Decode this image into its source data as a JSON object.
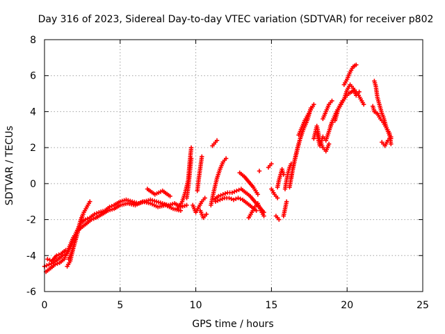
{
  "chart_data": {
    "type": "scatter",
    "title": "Day 316 of 2023, Sidereal Day-to-day VTEC variation (SDTVAR) for receiver p802",
    "xlabel": "GPS time / hours",
    "ylabel": "SDTVAR / TECUs",
    "xlim": [
      0,
      25
    ],
    "ylim": [
      -6,
      8
    ],
    "xticks": [
      0,
      5,
      10,
      15,
      20,
      25
    ],
    "xtick_labels": [
      "0",
      "5",
      "10",
      "15",
      "20",
      "25"
    ],
    "yticks": [
      -6,
      -4,
      -2,
      0,
      2,
      4,
      6,
      8
    ],
    "ytick_labels": [
      "-6",
      "-4",
      "-2",
      "0",
      "2",
      "4",
      "6",
      "8"
    ],
    "grid": true,
    "marker": "+",
    "color": "#ff0000",
    "series": [
      {
        "name": "SDTVAR",
        "segments": [
          {
            "x": [
              0.0,
              0.3,
              0.6,
              0.9,
              1.2,
              1.5,
              1.8,
              2.1,
              2.4,
              2.7,
              3.0,
              3.3,
              3.6,
              4.0,
              4.3,
              4.6,
              5.0,
              5.4,
              5.8,
              6.2,
              6.6,
              7.0,
              7.4,
              7.8,
              8.2,
              8.6,
              9.0,
              9.4
            ],
            "y": [
              -4.6,
              -4.5,
              -4.4,
              -4.2,
              -4.0,
              -3.9,
              -3.4,
              -2.7,
              -2.2,
              -2.0,
              -1.9,
              -1.7,
              -1.6,
              -1.5,
              -1.3,
              -1.2,
              -1.0,
              -0.9,
              -1.0,
              -1.1,
              -1.0,
              -0.9,
              -1.0,
              -1.1,
              -1.2,
              -1.1,
              -1.3,
              -1.2
            ]
          },
          {
            "x": [
              0.1,
              0.4,
              0.7,
              1.0,
              1.3,
              1.6,
              1.9,
              2.2,
              2.5,
              2.8,
              3.1,
              3.4,
              3.8,
              4.2,
              4.6,
              5.0,
              5.5,
              6.0,
              6.5,
              7.0,
              7.5,
              8.0,
              8.5,
              9.0
            ],
            "y": [
              -4.9,
              -4.7,
              -4.5,
              -4.4,
              -4.2,
              -3.6,
              -3.0,
              -2.6,
              -2.4,
              -2.2,
              -2.0,
              -1.9,
              -1.7,
              -1.5,
              -1.4,
              -1.2,
              -1.1,
              -1.2,
              -1.0,
              -1.1,
              -1.3,
              -1.2,
              -1.4,
              -1.5
            ]
          },
          {
            "x": [
              1.6,
              1.8,
              2.0,
              2.2,
              2.4,
              2.6,
              2.8,
              3.0
            ],
            "y": [
              -4.2,
              -3.8,
              -3.2,
              -2.6,
              -2.0,
              -1.6,
              -1.3,
              -1.0
            ]
          },
          {
            "x": [
              1.5,
              1.7,
              1.9,
              2.1,
              2.3,
              2.5
            ],
            "y": [
              -4.6,
              -4.3,
              -3.6,
              -3.0,
              -2.4,
              -1.8
            ]
          },
          {
            "x": [
              0.2,
              0.5,
              0.8,
              1.1,
              1.4
            ],
            "y": [
              -4.2,
              -4.3,
              -4.0,
              -3.9,
              -3.7
            ]
          },
          {
            "x": [
              6.8,
              7.3,
              7.8,
              8.3
            ],
            "y": [
              -0.3,
              -0.6,
              -0.4,
              -0.7
            ]
          },
          {
            "x": [
              8.8,
              9.1,
              9.3,
              9.5,
              9.6,
              9.7
            ],
            "y": [
              -1.4,
              -1.0,
              -0.5,
              0.2,
              1.2,
              2.0
            ]
          },
          {
            "x": [
              9.4,
              9.5,
              9.6,
              9.7
            ],
            "y": [
              -0.8,
              -0.2,
              0.6,
              1.4
            ]
          },
          {
            "x": [
              9.8,
              10.0,
              10.2,
              10.4,
              10.6
            ],
            "y": [
              -1.2,
              -1.6,
              -1.3,
              -1.0,
              -0.8
            ]
          },
          {
            "x": [
              10.1,
              10.2,
              10.3,
              10.4
            ],
            "y": [
              -0.4,
              0.3,
              0.9,
              1.5
            ]
          },
          {
            "x": [
              10.3,
              10.5,
              10.7
            ],
            "y": [
              -1.5,
              -1.9,
              -1.7
            ]
          },
          {
            "x": [
              11.1,
              11.2,
              11.3,
              11.4
            ],
            "y": [
              2.1,
              2.2,
              2.3,
              2.4
            ]
          },
          {
            "x": [
              11.0,
              11.2,
              11.4,
              11.6,
              11.8,
              12.0
            ],
            "y": [
              -1.2,
              -0.4,
              0.3,
              0.8,
              1.2,
              1.4
            ]
          },
          {
            "x": [
              11.2,
              11.5,
              11.8,
              12.1,
              12.4,
              12.7,
              13.0,
              13.3,
              13.6,
              13.9,
              14.2,
              14.5
            ],
            "y": [
              -0.9,
              -0.7,
              -0.6,
              -0.5,
              -0.5,
              -0.4,
              -0.3,
              -0.5,
              -0.7,
              -1.0,
              -1.3,
              -1.6
            ]
          },
          {
            "x": [
              11.3,
              11.6,
              11.9,
              12.2,
              12.5,
              12.8,
              13.1,
              13.4,
              13.7,
              14.0
            ],
            "y": [
              -1.0,
              -0.9,
              -0.8,
              -0.8,
              -0.9,
              -0.8,
              -0.9,
              -1.1,
              -1.3,
              -1.5
            ]
          },
          {
            "x": [
              12.9,
              13.2,
              13.5,
              13.8,
              14.1
            ],
            "y": [
              0.6,
              0.4,
              0.1,
              -0.2,
              -0.6
            ]
          },
          {
            "x": [
              13.5,
              13.7,
              13.9,
              14.1,
              14.3,
              14.5
            ],
            "y": [
              -1.9,
              -1.6,
              -1.3,
              -1.1,
              -1.5,
              -1.8
            ]
          },
          {
            "x": [
              14.2
            ],
            "y": [
              0.7
            ]
          },
          {
            "x": [
              14.8,
              14.9,
              15.0
            ],
            "y": [
              0.9,
              1.0,
              1.1
            ]
          },
          {
            "x": [
              15.0,
              15.2,
              15.4
            ],
            "y": [
              -0.3,
              -0.6,
              -0.8
            ]
          },
          {
            "x": [
              15.3,
              15.4,
              15.5
            ],
            "y": [
              -1.8,
              -1.9,
              -2.0
            ]
          },
          {
            "x": [
              15.4,
              15.5,
              15.6,
              15.7,
              15.8
            ],
            "y": [
              -0.2,
              0.2,
              0.5,
              0.8,
              0.5
            ]
          },
          {
            "x": [
              15.8,
              15.9,
              16.0
            ],
            "y": [
              -1.8,
              -1.4,
              -1.0
            ]
          },
          {
            "x": [
              15.9,
              16.0,
              16.1,
              16.2,
              16.3
            ],
            "y": [
              -0.3,
              0.2,
              0.6,
              0.9,
              1.1
            ]
          },
          {
            "x": [
              16.2,
              16.4,
              16.6,
              16.8,
              17.0,
              17.2,
              17.4,
              17.6
            ],
            "y": [
              -0.2,
              0.8,
              1.5,
              2.2,
              2.8,
              3.2,
              3.6,
              4.2
            ]
          },
          {
            "x": [
              16.3,
              16.5,
              16.7,
              16.9,
              17.1,
              17.3,
              17.5
            ],
            "y": [
              0.3,
              1.2,
              1.9,
              2.5,
              3.0,
              3.4,
              3.9
            ]
          },
          {
            "x": [
              16.8,
              17.0,
              17.2,
              17.4,
              17.6,
              17.8
            ],
            "y": [
              2.7,
              3.1,
              3.5,
              3.8,
              4.1,
              4.4
            ]
          },
          {
            "x": [
              17.8,
              18.0,
              18.2,
              18.4,
              18.6,
              18.8
            ],
            "y": [
              2.5,
              3.2,
              2.4,
              2.0,
              1.8,
              2.2
            ]
          },
          {
            "x": [
              18.0,
              18.2,
              18.4,
              18.6,
              18.8,
              19.0
            ],
            "y": [
              2.8,
              2.1,
              2.6,
              2.4,
              2.9,
              3.4
            ]
          },
          {
            "x": [
              18.4,
              18.6,
              18.8,
              19.0
            ],
            "y": [
              3.6,
              4.0,
              4.4,
              4.6
            ]
          },
          {
            "x": [
              18.9,
              19.1,
              19.3,
              19.5,
              19.7,
              19.9,
              20.1,
              20.3,
              20.5,
              20.7,
              20.9,
              21.1
            ],
            "y": [
              3.2,
              3.6,
              4.0,
              4.3,
              4.6,
              4.8,
              5.0,
              5.1,
              5.2,
              5.0,
              4.7,
              4.4
            ]
          },
          {
            "x": [
              19.2,
              19.4,
              19.6,
              19.8,
              20.0,
              20.2,
              20.4,
              20.6,
              20.8
            ],
            "y": [
              3.5,
              4.1,
              4.4,
              4.7,
              5.2,
              5.5,
              5.3,
              4.9,
              5.1
            ]
          },
          {
            "x": [
              19.8,
              20.0,
              20.2,
              20.4,
              20.6
            ],
            "y": [
              5.5,
              5.8,
              6.2,
              6.5,
              6.6
            ]
          },
          {
            "x": [
              21.8,
              21.9,
              22.0,
              22.1,
              22.2,
              22.3,
              22.4,
              22.5,
              22.6,
              22.7,
              22.8,
              22.9
            ],
            "y": [
              5.7,
              5.4,
              4.8,
              4.5,
              4.2,
              3.9,
              3.7,
              3.4,
              3.1,
              2.9,
              2.7,
              2.5
            ]
          },
          {
            "x": [
              21.7,
              21.8,
              22.0,
              22.2,
              22.4,
              22.6,
              22.8,
              22.9
            ],
            "y": [
              4.3,
              4.0,
              3.9,
              3.6,
              3.4,
              3.1,
              2.8,
              2.2
            ]
          },
          {
            "x": [
              22.3,
              22.5,
              22.7,
              22.9
            ],
            "y": [
              2.3,
              2.1,
              2.4,
              2.6
            ]
          }
        ]
      }
    ]
  }
}
